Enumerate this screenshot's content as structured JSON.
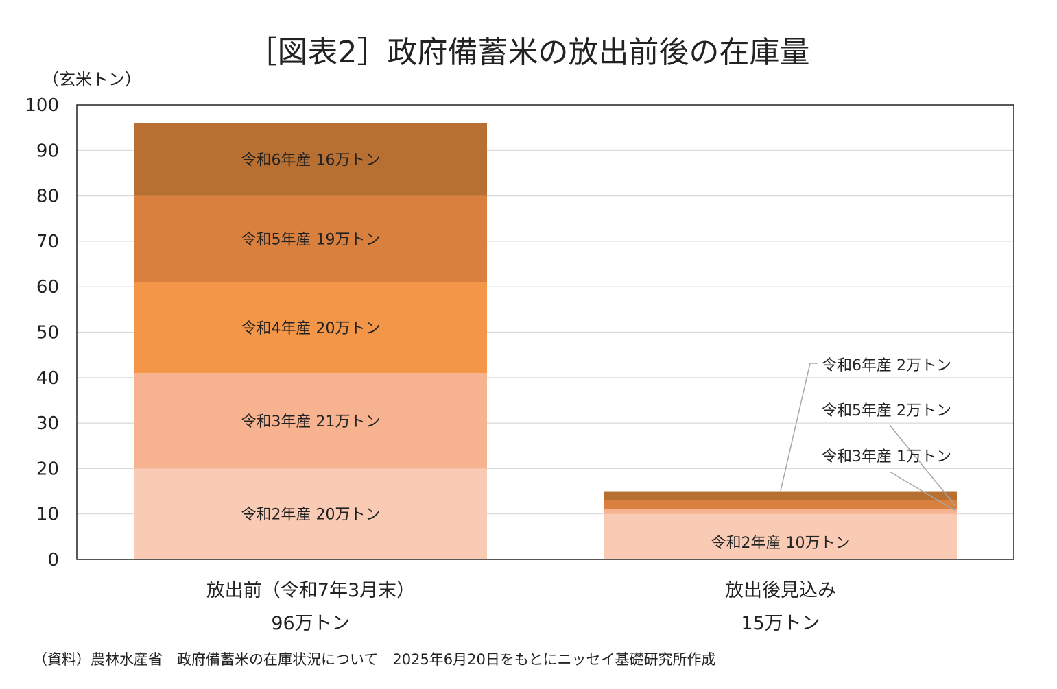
{
  "chart_data": {
    "type": "bar",
    "stacked": true,
    "title": "［図表2］政府備蓄米の放出前後の在庫量",
    "unit_label": "（玄米トン）",
    "ylim": [
      0,
      100
    ],
    "yticks": [
      0,
      10,
      20,
      30,
      40,
      50,
      60,
      70,
      80,
      90,
      100
    ],
    "grid": true,
    "categories": [
      {
        "label": "放出前（令和7年3月末）",
        "total_label": "96万トン"
      },
      {
        "label": "放出後見込み",
        "total_label": "15万トン"
      }
    ],
    "series": [
      {
        "name": "令和2年産",
        "color": "#f9cbb4",
        "values": [
          20,
          10
        ],
        "labels": [
          "令和2年産 20万トン",
          "令和2年産 10万トン"
        ]
      },
      {
        "name": "令和3年産",
        "color": "#f7b28f",
        "values": [
          21,
          1
        ],
        "labels": [
          "令和3年産 21万トン",
          "令和3年産 1万トン"
        ]
      },
      {
        "name": "令和4年産",
        "color": "#f39648",
        "values": [
          20,
          0
        ],
        "labels": [
          "令和4年産 20万トン",
          ""
        ]
      },
      {
        "name": "令和5年産",
        "color": "#d9803e",
        "values": [
          19,
          2
        ],
        "labels": [
          "令和5年産 19万トン",
          "令和5年産 2万トン"
        ]
      },
      {
        "name": "令和6年産",
        "color": "#b87032",
        "values": [
          16,
          2
        ],
        "labels": [
          "令和6年産 16万トン",
          "令和6年産 2万トン"
        ]
      }
    ],
    "source": "（資料）農林水産省　政府備蓄米の在庫状況について　2025年6月20日をもとにニッセイ基礎研究所作成"
  }
}
